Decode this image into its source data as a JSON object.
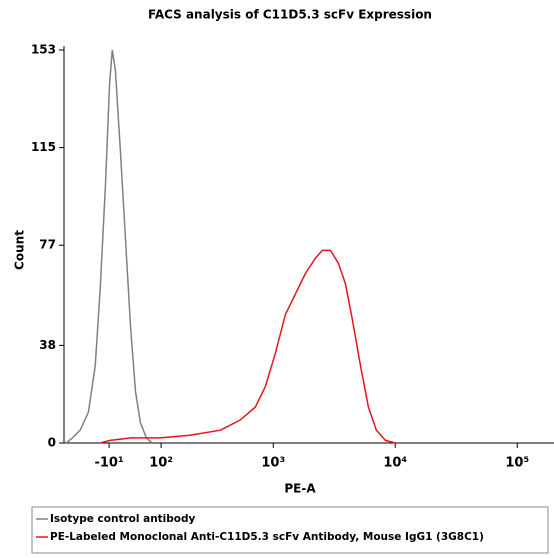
{
  "chart_data": {
    "type": "line",
    "title": "FACS analysis of C11D5.3 scFv Expression",
    "x_label": "PE-A",
    "y_label": "Count",
    "x_scale": "biexponential",
    "xlim": [
      -110,
      200000
    ],
    "xticks": [
      {
        "value": -10,
        "label": "-10¹"
      },
      {
        "value": 100,
        "label": "10²"
      },
      {
        "value": 1000,
        "label": "10³"
      },
      {
        "value": 10000,
        "label": "10⁴"
      },
      {
        "value": 100000,
        "label": "10⁵"
      }
    ],
    "ylim": [
      0,
      153
    ],
    "yticks": [
      0,
      38,
      77,
      115,
      153
    ],
    "legend": "bottom",
    "series": [
      {
        "name": "Isotype control antibody",
        "color": "#808080",
        "x": [
          -104,
          -88,
          -69,
          -51,
          -37,
          -27,
          -17,
          -9,
          -4,
          2,
          11,
          21,
          31,
          41,
          51,
          64,
          78
        ],
        "values": [
          0,
          2,
          5,
          12,
          30,
          60,
          100,
          140,
          153,
          145,
          115,
          80,
          45,
          20,
          8,
          2,
          0
        ]
      },
      {
        "name": "PE-Labeled Monoclonal Anti-C11D5.3 scFv Antibody, Mouse IgG1 (3G8C1)",
        "color": "#e8141c",
        "x": [
          -27,
          -8,
          31,
          98,
          196,
          363,
          534,
          712,
          861,
          1041,
          1258,
          1520,
          1836,
          2220,
          2530,
          2950,
          3420,
          3910,
          4460,
          5190,
          6030,
          7010,
          8310,
          10040
        ],
        "values": [
          0,
          1,
          2,
          2,
          3,
          5,
          9,
          14,
          22,
          35,
          50,
          58,
          66,
          72,
          75,
          75,
          70,
          62,
          48,
          30,
          14,
          5,
          1,
          0
        ]
      }
    ]
  }
}
